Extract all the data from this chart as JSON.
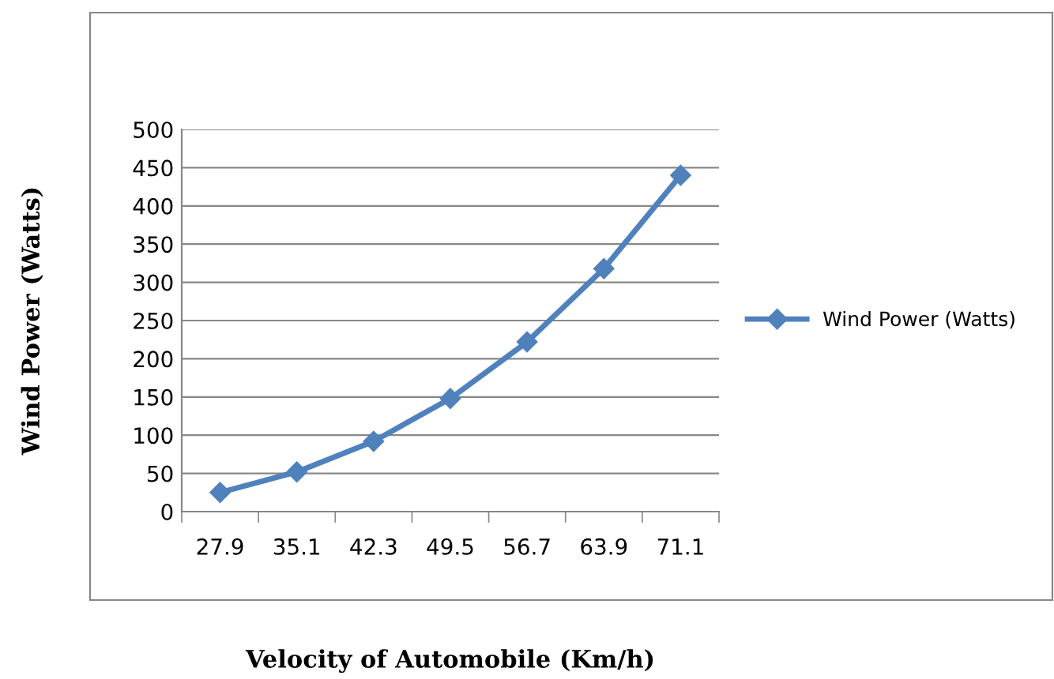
{
  "chart_data": {
    "type": "line",
    "xlabel": "Velocity of Automobile (Km/h)",
    "ylabel": "Wind Power (Watts)",
    "categories": [
      "27.9",
      "35.1",
      "42.3",
      "49.5",
      "56.7",
      "63.9",
      "71.1"
    ],
    "series": [
      {
        "name": "Wind Power (Watts)",
        "color": "#4f81bd",
        "values": [
          25,
          52,
          92,
          148,
          222,
          318,
          440
        ]
      }
    ],
    "ylim": [
      0,
      500
    ],
    "yticks": [
      0,
      50,
      100,
      150,
      200,
      250,
      300,
      350,
      400,
      450,
      500
    ],
    "grid": "y",
    "legend": "right",
    "marker": "diamond",
    "line_style": "solid"
  }
}
